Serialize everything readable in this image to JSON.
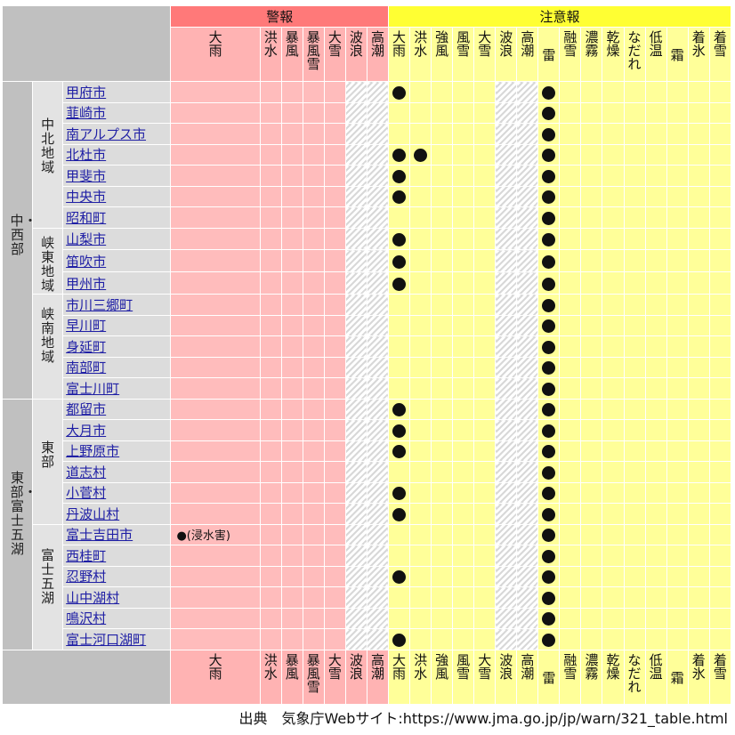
{
  "header": {
    "warning_group": "警報",
    "advisory_group": "注意報",
    "warning_items": [
      "大雨",
      "洪水",
      "暴風",
      "暴風雪",
      "大雪",
      "波浪",
      "高潮"
    ],
    "advisory_items": [
      "大雨",
      "洪水",
      "強風",
      "風雪",
      "大雪",
      "波浪",
      "高潮",
      "雷",
      "融雪",
      "濃霧",
      "乾燥",
      "なだれ",
      "低温",
      "霜",
      "着氷",
      "着雪"
    ]
  },
  "regions": [
    {
      "name": "中・西部",
      "subregions": [
        "中北地域",
        "峡東地域",
        "峡南地域"
      ]
    },
    {
      "name": "東部・富士五湖",
      "subregions": [
        "東部",
        "富士五湖"
      ]
    }
  ],
  "rows": [
    {
      "city": "甲府市",
      "warning": "",
      "advisories": [
        "大雨",
        "雷"
      ]
    },
    {
      "city": "韮崎市",
      "warning": "",
      "advisories": [
        "雷"
      ]
    },
    {
      "city": "南アルプス市",
      "warning": "",
      "advisories": [
        "雷"
      ]
    },
    {
      "city": "北杜市",
      "warning": "",
      "advisories": [
        "大雨",
        "洪水",
        "雷"
      ]
    },
    {
      "city": "甲斐市",
      "warning": "",
      "advisories": [
        "大雨",
        "雷"
      ]
    },
    {
      "city": "中央市",
      "warning": "",
      "advisories": [
        "大雨",
        "雷"
      ]
    },
    {
      "city": "昭和町",
      "warning": "",
      "advisories": [
        "雷"
      ]
    },
    {
      "city": "山梨市",
      "warning": "",
      "advisories": [
        "大雨",
        "雷"
      ]
    },
    {
      "city": "笛吹市",
      "warning": "",
      "advisories": [
        "大雨",
        "雷"
      ]
    },
    {
      "city": "甲州市",
      "warning": "",
      "advisories": [
        "大雨",
        "雷"
      ]
    },
    {
      "city": "市川三郷町",
      "warning": "",
      "advisories": [
        "雷"
      ]
    },
    {
      "city": "早川町",
      "warning": "",
      "advisories": [
        "雷"
      ]
    },
    {
      "city": "身延町",
      "warning": "",
      "advisories": [
        "雷"
      ]
    },
    {
      "city": "南部町",
      "warning": "",
      "advisories": [
        "雷"
      ]
    },
    {
      "city": "富士川町",
      "warning": "",
      "advisories": [
        "雷"
      ]
    },
    {
      "city": "都留市",
      "warning": "",
      "advisories": [
        "大雨",
        "雷"
      ]
    },
    {
      "city": "大月市",
      "warning": "",
      "advisories": [
        "大雨",
        "雷"
      ]
    },
    {
      "city": "上野原市",
      "warning": "",
      "advisories": [
        "大雨",
        "雷"
      ]
    },
    {
      "city": "道志村",
      "warning": "",
      "advisories": [
        "雷"
      ]
    },
    {
      "city": "小菅村",
      "warning": "",
      "advisories": [
        "大雨",
        "雷"
      ]
    },
    {
      "city": "丹波山村",
      "warning": "",
      "advisories": [
        "大雨",
        "雷"
      ]
    },
    {
      "city": "富士吉田市",
      "warning": "●(浸水害)",
      "advisories": [
        "雷"
      ]
    },
    {
      "city": "西桂町",
      "warning": "",
      "advisories": [
        "雷"
      ]
    },
    {
      "city": "忍野村",
      "warning": "",
      "advisories": [
        "大雨",
        "雷"
      ]
    },
    {
      "city": "山中湖村",
      "warning": "",
      "advisories": [
        "雷"
      ]
    },
    {
      "city": "鳴沢村",
      "warning": "",
      "advisories": [
        "雷"
      ]
    },
    {
      "city": "富士河口湖町",
      "warning": "",
      "advisories": [
        "大雨",
        "雷"
      ]
    }
  ],
  "source": "出典　気象庁Webサイト:https://www.jma.go.jp/jp/warn/321_table.html"
}
